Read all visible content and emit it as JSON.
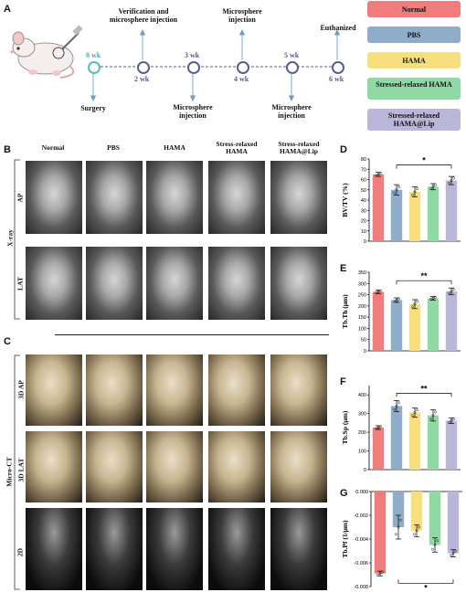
{
  "panel_letters": {
    "a": "A",
    "b": "B",
    "c": "C",
    "d": "D",
    "e": "E",
    "f": "F",
    "g": "G"
  },
  "timeline": {
    "weeks": [
      "0 wk",
      "2 wk",
      "3 wk",
      "4 wk",
      "5 wk",
      "6 wk"
    ],
    "events": {
      "surgery": "Surgery",
      "verification": "Verification and microsphere injection",
      "inj3": "Microsphere injection",
      "inj4": "Microsphere injection",
      "inj5": "Microsphere injection",
      "euthanized": "Euthanized"
    }
  },
  "legend": [
    {
      "label": "Normal",
      "color": "#f07c7c"
    },
    {
      "label": "PBS",
      "color": "#8facc9"
    },
    {
      "label": "HAMA",
      "color": "#f7df7e"
    },
    {
      "label": "Stressed-relaxed HAMA",
      "color": "#8fd9a5"
    },
    {
      "label": "Stressed-relaxed HAMA@Lip",
      "color": "#b9b6d9"
    }
  ],
  "image_grid": {
    "columns": [
      "Normal",
      "PBS",
      "HAMA",
      "Stress-relaxed HAMA",
      "Stress-relaxed HAMA@Lip"
    ],
    "xray_group": "X-ray",
    "xray_rows": [
      "AP",
      "LAT"
    ],
    "ct_group": "Micro-CT",
    "ct_rows": [
      "3D AP",
      "3D LAT",
      "2D"
    ]
  },
  "chart_data": [
    {
      "type": "bar",
      "panel": "D",
      "ylabel": "BV/TV (%)",
      "ylim": [
        0,
        80
      ],
      "yticks": [
        0,
        10,
        20,
        30,
        40,
        50,
        60,
        70,
        80
      ],
      "categories": [
        "Normal",
        "PBS",
        "HAMA",
        "Stressed-relaxed HAMA",
        "Stressed-relaxed HAMA@Lip"
      ],
      "values": [
        65,
        50,
        48,
        53,
        59
      ],
      "errors": [
        2,
        5,
        5,
        3,
        4
      ],
      "significance": {
        "from": 1,
        "to": 4,
        "label": "*"
      }
    },
    {
      "type": "bar",
      "panel": "E",
      "ylabel": "Tb.Th (μm)",
      "ylim": [
        0,
        350
      ],
      "yticks": [
        0,
        50,
        100,
        150,
        200,
        250,
        300,
        350
      ],
      "categories": [
        "Normal",
        "PBS",
        "HAMA",
        "Stressed-relaxed HAMA",
        "Stressed-relaxed HAMA@Lip"
      ],
      "values": [
        263,
        226,
        208,
        234,
        265
      ],
      "errors": [
        8,
        10,
        20,
        8,
        15
      ],
      "significance": {
        "from": 1,
        "to": 4,
        "label": "**"
      }
    },
    {
      "type": "bar",
      "panel": "F",
      "ylabel": "Tb.Sp (μm)",
      "ylim": [
        0,
        450
      ],
      "yticks": [
        0,
        100,
        200,
        300,
        400
      ],
      "categories": [
        "Normal",
        "PBS",
        "HAMA",
        "Stressed-relaxed HAMA",
        "Stressed-relaxed HAMA@Lip"
      ],
      "values": [
        225,
        340,
        305,
        290,
        262
      ],
      "errors": [
        10,
        30,
        25,
        30,
        15
      ],
      "significance": {
        "from": 1,
        "to": 4,
        "label": "**"
      }
    },
    {
      "type": "bar",
      "panel": "G",
      "ylabel": "Tb.Pf (1/μm)",
      "ylim": [
        -0.008,
        0
      ],
      "yticks": [
        0,
        -0.002,
        -0.004,
        -0.006,
        -0.008
      ],
      "yticklabels": [
        "0.000",
        "-0.002",
        "-0.004",
        "-0.006",
        "-0.008"
      ],
      "categories": [
        "Normal",
        "PBS",
        "HAMA",
        "Stressed-relaxed HAMA",
        "Stressed-relaxed HAMA@Lip"
      ],
      "values": [
        -0.0069,
        -0.003,
        -0.0033,
        -0.0045,
        -0.0052
      ],
      "errors": [
        0.0002,
        0.001,
        0.0005,
        0.0006,
        0.0003
      ],
      "significance": {
        "from": 1,
        "to": 4,
        "label": "*"
      }
    }
  ]
}
